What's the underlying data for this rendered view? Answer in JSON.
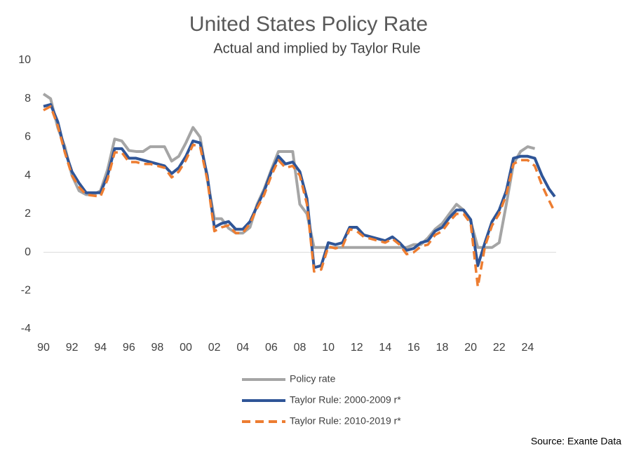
{
  "chart_data": {
    "type": "line",
    "title": "United States Policy Rate",
    "subtitle": "Actual and implied by Taylor Rule",
    "source": "Source: Exante Data",
    "x": [
      1990,
      1990.5,
      1991,
      1991.5,
      1992,
      1992.5,
      1993,
      1993.5,
      1994,
      1994.5,
      1995,
      1995.5,
      1996,
      1996.5,
      1997,
      1997.5,
      1998,
      1998.5,
      1999,
      1999.5,
      2000,
      2000.5,
      2001,
      2001.5,
      2002,
      2002.5,
      2003,
      2003.5,
      2004,
      2004.5,
      2005,
      2005.5,
      2006,
      2006.5,
      2007,
      2007.5,
      2008,
      2008.5,
      2009,
      2009.5,
      2010,
      2010.5,
      2011,
      2011.5,
      2012,
      2012.5,
      2013,
      2013.5,
      2014,
      2014.5,
      2015,
      2015.5,
      2016,
      2016.5,
      2017,
      2017.5,
      2018,
      2018.5,
      2019,
      2019.5,
      2020,
      2020.5,
      2021,
      2021.5,
      2022,
      2022.5,
      2023,
      2023.5,
      2024,
      2024.5,
      2025,
      2025.5,
      2025.9
    ],
    "series": [
      {
        "name": "Policy rate",
        "color": "#a5a5a5",
        "dash": false,
        "values": [
          8.25,
          8.0,
          6.5,
          5.5,
          4.0,
          3.2,
          3.0,
          3.0,
          3.2,
          4.3,
          5.9,
          5.8,
          5.3,
          5.25,
          5.25,
          5.5,
          5.5,
          5.5,
          4.75,
          5.0,
          5.7,
          6.5,
          6.0,
          3.8,
          1.75,
          1.75,
          1.25,
          1.0,
          1.0,
          1.3,
          2.5,
          3.3,
          4.3,
          5.25,
          5.25,
          5.25,
          2.5,
          2.0,
          0.25,
          0.25,
          0.25,
          0.25,
          0.25,
          0.25,
          0.25,
          0.25,
          0.25,
          0.25,
          0.25,
          0.25,
          0.25,
          0.25,
          0.4,
          0.4,
          0.75,
          1.2,
          1.5,
          2.0,
          2.5,
          2.2,
          1.6,
          0.25,
          0.25,
          0.25,
          0.5,
          2.5,
          4.6,
          5.25,
          5.5,
          5.4,
          null,
          null,
          null
        ]
      },
      {
        "name": "Taylor Rule: 2000-2009 r*",
        "color": "#2f5597",
        "dash": false,
        "values": [
          7.6,
          7.7,
          6.8,
          5.3,
          4.2,
          3.6,
          3.1,
          3.1,
          3.1,
          4.0,
          5.4,
          5.4,
          4.9,
          4.9,
          4.8,
          4.7,
          4.6,
          4.5,
          4.1,
          4.4,
          5.0,
          5.8,
          5.7,
          4.0,
          1.3,
          1.5,
          1.6,
          1.2,
          1.2,
          1.6,
          2.4,
          3.2,
          4.2,
          5.0,
          4.6,
          4.7,
          4.2,
          2.8,
          -0.8,
          -0.7,
          0.5,
          0.4,
          0.5,
          1.3,
          1.3,
          0.9,
          0.8,
          0.7,
          0.6,
          0.8,
          0.5,
          0.1,
          0.2,
          0.5,
          0.6,
          1.1,
          1.3,
          1.8,
          2.2,
          2.2,
          1.7,
          -0.7,
          0.5,
          1.6,
          2.2,
          3.2,
          4.9,
          5.0,
          5.0,
          4.9,
          4.0,
          3.3,
          2.9
        ]
      },
      {
        "name": "Taylor Rule: 2010-2019 r*",
        "color": "#ed7d31",
        "dash": true,
        "values": [
          7.4,
          7.6,
          6.6,
          5.2,
          4.0,
          3.4,
          3.0,
          2.95,
          2.9,
          3.8,
          5.2,
          5.2,
          4.7,
          4.7,
          4.6,
          4.6,
          4.5,
          4.4,
          3.9,
          4.2,
          4.8,
          5.6,
          5.5,
          3.8,
          1.1,
          1.3,
          1.4,
          1.0,
          1.0,
          1.5,
          2.3,
          3.0,
          4.0,
          4.8,
          4.4,
          4.5,
          4.0,
          2.5,
          -1.0,
          -0.9,
          0.3,
          0.2,
          0.3,
          1.2,
          1.1,
          0.8,
          0.7,
          0.6,
          0.5,
          0.7,
          0.4,
          -0.1,
          0.0,
          0.3,
          0.4,
          0.9,
          1.1,
          1.6,
          2.0,
          2.0,
          1.5,
          -1.8,
          0.3,
          1.4,
          2.0,
          3.0,
          4.6,
          4.8,
          4.8,
          4.5,
          3.5,
          2.7,
          2.1
        ]
      }
    ],
    "xlim": [
      1990,
      2026
    ],
    "ylim": [
      -4,
      10
    ],
    "xticks": [
      {
        "value": 1990,
        "label": "90"
      },
      {
        "value": 1992,
        "label": "92"
      },
      {
        "value": 1994,
        "label": "94"
      },
      {
        "value": 1996,
        "label": "96"
      },
      {
        "value": 1998,
        "label": "98"
      },
      {
        "value": 2000,
        "label": "00"
      },
      {
        "value": 2002,
        "label": "02"
      },
      {
        "value": 2004,
        "label": "04"
      },
      {
        "value": 2006,
        "label": "06"
      },
      {
        "value": 2008,
        "label": "08"
      },
      {
        "value": 2010,
        "label": "10"
      },
      {
        "value": 2012,
        "label": "12"
      },
      {
        "value": 2014,
        "label": "14"
      },
      {
        "value": 2016,
        "label": "16"
      },
      {
        "value": 2018,
        "label": "18"
      },
      {
        "value": 2020,
        "label": "20"
      },
      {
        "value": 2022,
        "label": "22"
      },
      {
        "value": 2024,
        "label": "24"
      }
    ],
    "yticks": [
      -4,
      -2,
      0,
      2,
      4,
      6,
      8,
      10
    ],
    "grid": false
  }
}
